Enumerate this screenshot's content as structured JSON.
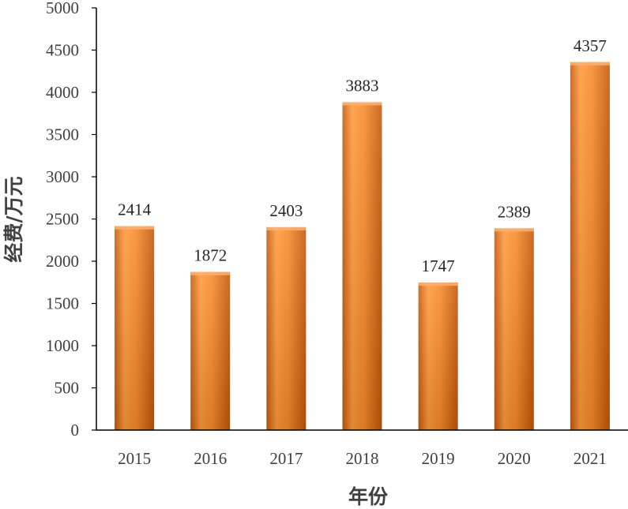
{
  "chart_data": {
    "type": "bar",
    "categories": [
      "2015",
      "2016",
      "2017",
      "2018",
      "2019",
      "2020",
      "2021"
    ],
    "values": [
      2414,
      1872,
      2403,
      3883,
      1747,
      2389,
      4357
    ],
    "title": "",
    "xlabel": "年份",
    "ylabel": "经费/万元",
    "ylim": [
      0,
      5000
    ],
    "yticks": [
      0,
      500,
      1000,
      1500,
      2000,
      2500,
      3000,
      3500,
      4000,
      4500,
      5000
    ],
    "grid": false,
    "legend": "none",
    "data_labels": true,
    "colors": {
      "bar_light": "#ff9a3c",
      "bar_main": "#f07d1a",
      "bar_dark": "#c85a0c",
      "axis": "#000000",
      "text": "#404040"
    }
  }
}
